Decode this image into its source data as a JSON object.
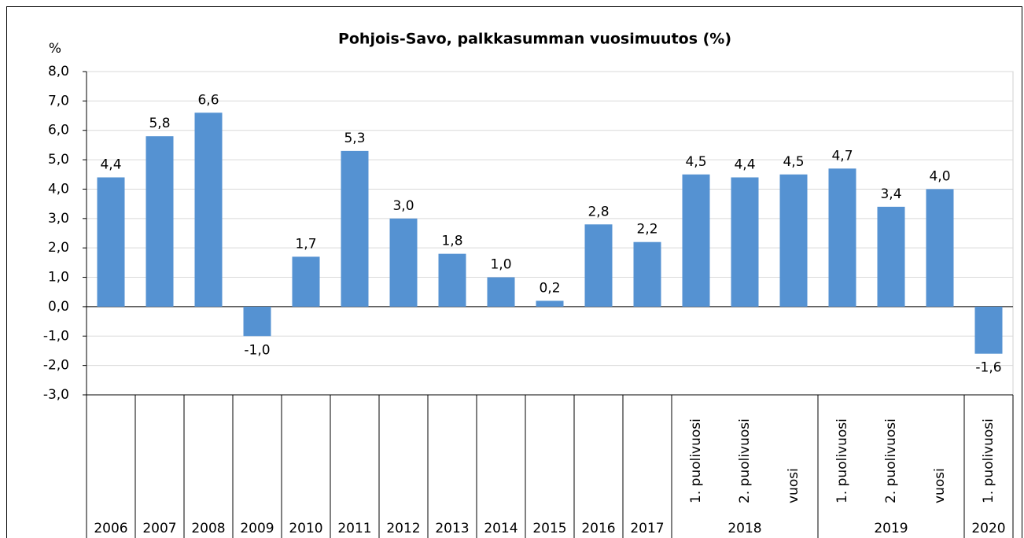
{
  "chart_data": {
    "type": "bar",
    "title": "Pohjois-Savo, palkkasumman vuosimuutos (%)",
    "y_label": "%",
    "groups": [
      {
        "name": "2006",
        "categories": [
          null
        ]
      },
      {
        "name": "2007",
        "categories": [
          null
        ]
      },
      {
        "name": "2008",
        "categories": [
          null
        ]
      },
      {
        "name": "2009",
        "categories": [
          null
        ]
      },
      {
        "name": "2010",
        "categories": [
          null
        ]
      },
      {
        "name": "2011",
        "categories": [
          null
        ]
      },
      {
        "name": "2012",
        "categories": [
          null
        ]
      },
      {
        "name": "2013",
        "categories": [
          null
        ]
      },
      {
        "name": "2014",
        "categories": [
          null
        ]
      },
      {
        "name": "2015",
        "categories": [
          null
        ]
      },
      {
        "name": "2016",
        "categories": [
          null
        ]
      },
      {
        "name": "2017",
        "categories": [
          null
        ]
      },
      {
        "name": "2018",
        "categories": [
          "1. puolivuosi",
          "2. puolivuosi",
          "vuosi"
        ]
      },
      {
        "name": "2019",
        "categories": [
          "1. puolivuosi",
          "2. puolivuosi",
          "vuosi"
        ]
      },
      {
        "name": "2020",
        "categories": [
          "1. puolivuosi"
        ]
      }
    ],
    "values": [
      4.4,
      5.8,
      6.6,
      -1.0,
      1.7,
      5.3,
      3.0,
      1.8,
      1.0,
      0.2,
      2.8,
      2.2,
      4.5,
      4.4,
      4.5,
      4.7,
      3.4,
      4.0,
      -1.6
    ],
    "value_labels": [
      "4,4",
      "5,8",
      "6,6",
      "-1,0",
      "1,7",
      "5,3",
      "3,0",
      "1,8",
      "1,0",
      "0,2",
      "2,8",
      "2,2",
      "4,5",
      "4,4",
      "4,5",
      "4,7",
      "3,4",
      "4,0",
      "-1,6"
    ],
    "color": "#5592d2",
    "ylim": [
      -3,
      8
    ],
    "yticks": [
      {
        "value": -3,
        "label": "-3,0"
      },
      {
        "value": -2,
        "label": "-2,0"
      },
      {
        "value": -1,
        "label": "-1,0"
      },
      {
        "value": 0,
        "label": "0,0"
      },
      {
        "value": 1,
        "label": "1,0"
      },
      {
        "value": 2,
        "label": "2,0"
      },
      {
        "value": 3,
        "label": "3,0"
      },
      {
        "value": 4,
        "label": "4,0"
      },
      {
        "value": 5,
        "label": "5,0"
      },
      {
        "value": 6,
        "label": "6,0"
      },
      {
        "value": 7,
        "label": "7,0"
      },
      {
        "value": 8,
        "label": "8,0"
      }
    ],
    "grid": true
  }
}
